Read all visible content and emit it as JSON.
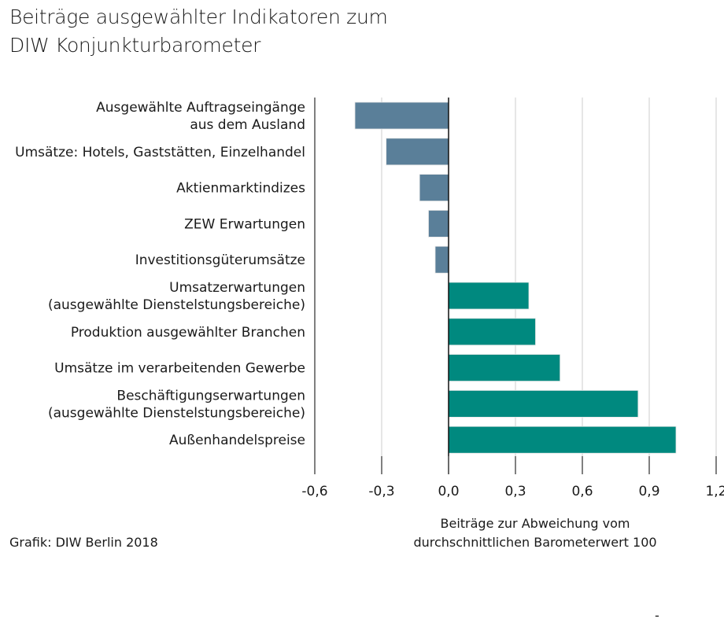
{
  "title_lines": [
    "Beiträge ausgewählter Indikatoren zum",
    "DIW Konjunkturbarometer"
  ],
  "source": "Grafik: DIW Berlin 2018",
  "footer_mark": "-",
  "colors": {
    "negative": "#5a7f99",
    "positive": "#00897f"
  },
  "chart_data": {
    "type": "bar",
    "orientation": "horizontal",
    "title": "Beiträge ausgewählter Indikatoren zum DIW Konjunkturbarometer",
    "categories": [
      [
        "Ausgewählte Auftragseingänge",
        "aus dem Ausland"
      ],
      [
        "Umsätze: Hotels, Gaststätten, Einzelhandel"
      ],
      [
        "Aktienmarktindizes"
      ],
      [
        "ZEW Erwartungen"
      ],
      [
        "Investitionsgüterumsätze"
      ],
      [
        "Umsatzerwartungen",
        "(ausgewählte Dienstelstungsbereiche)"
      ],
      [
        "Produktion ausgewählter Branchen"
      ],
      [
        "Umsätze im verarbeitenden Gewerbe"
      ],
      [
        "Beschäftigungserwartungen",
        "(ausgewählte Dienstelstungsbereiche)"
      ],
      [
        "Außenhandelspreise"
      ]
    ],
    "values": [
      -0.42,
      -0.28,
      -0.13,
      -0.09,
      -0.06,
      0.36,
      0.39,
      0.5,
      0.85,
      1.02
    ],
    "xlim": [
      -0.6,
      1.2
    ],
    "ticks": [
      -0.6,
      -0.3,
      0.0,
      0.3,
      0.6,
      0.9,
      1.2
    ],
    "tick_labels": [
      "-0,6",
      "-0,3",
      "0,0",
      "0,3",
      "0,6",
      "0,9",
      "1,2"
    ],
    "xlabel_lines": [
      "Beiträge zur Abweichung vom",
      "durchschnittlichen Barometerwert 100"
    ],
    "grid": true
  }
}
